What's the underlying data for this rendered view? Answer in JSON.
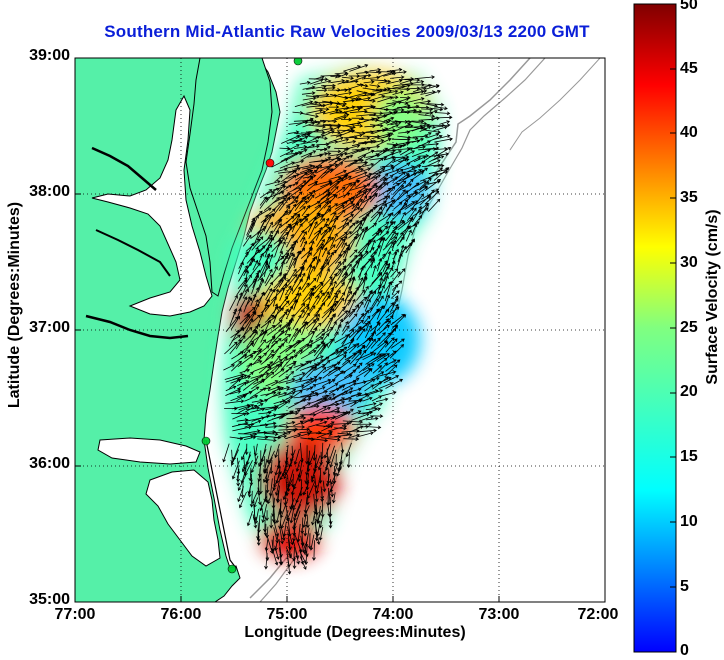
{
  "map": {
    "title": "Southern Mid-Atlantic Raw Velocities 2009/03/13 2200 GMT",
    "xlabel": "Longitude (Degrees:Minutes)",
    "ylabel": "Latitude (Degrees:Minutes)",
    "x_ticks": [
      "77:00",
      "76:00",
      "75:00",
      "74:00",
      "73:00",
      "72:00"
    ],
    "y_ticks": [
      "39:00",
      "38:00",
      "37:00",
      "36:00",
      "35:00"
    ],
    "lon_range": [
      -77.0,
      -72.0
    ],
    "lat_range": [
      35.0,
      39.0
    ],
    "colorbar": {
      "label": "Surface Velocity (cm/s)",
      "ticks": [
        "0",
        "5",
        "10",
        "15",
        "20",
        "25",
        "30",
        "35",
        "40",
        "45",
        "50"
      ],
      "range": [
        0,
        50
      ],
      "colormap": "jet"
    },
    "colors": {
      "title": "#0a1fd8",
      "land": "#55f0a8",
      "coastline": "#000000",
      "bathymetry": "#999999",
      "station_marker": "#00cc33",
      "highlight_marker": "#ff0000"
    },
    "icons": [
      "hf-radar-station-marker"
    ]
  }
}
